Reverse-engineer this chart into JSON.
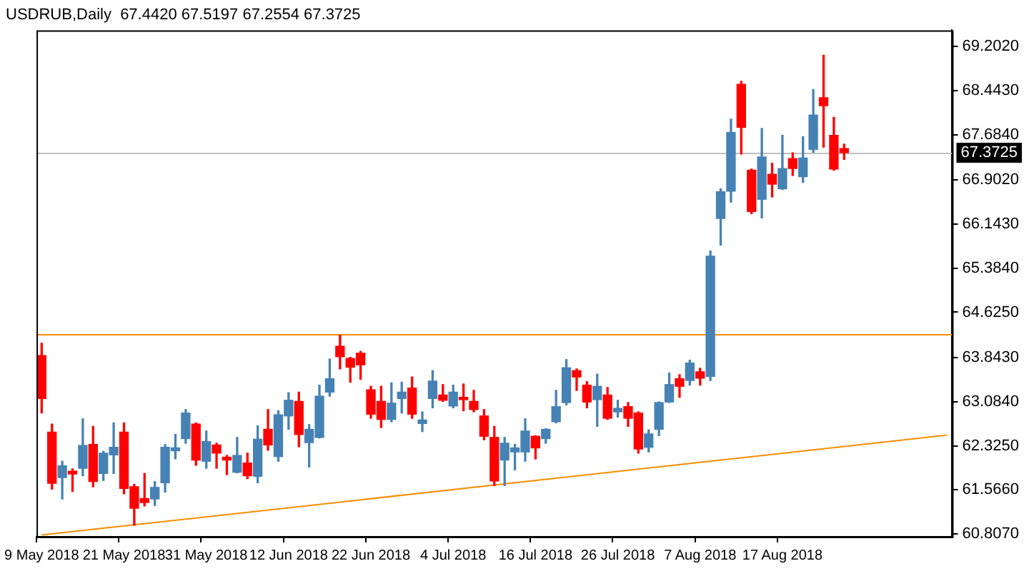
{
  "chart_data": {
    "type": "candlestick",
    "title": "USDRUB,Daily  67.4420 67.5197 67.2554 67.3725",
    "categories": [
      "9 May 2018",
      null,
      null,
      null,
      null,
      null,
      null,
      null,
      "21 May 2018",
      null,
      null,
      null,
      null,
      null,
      null,
      null,
      "31 May 2018",
      null,
      null,
      null,
      null,
      null,
      null,
      null,
      "12 Jun 2018",
      null,
      null,
      null,
      null,
      null,
      null,
      null,
      "22 Jun 2018",
      null,
      null,
      null,
      null,
      null,
      null,
      null,
      "4 Jul 2018",
      null,
      null,
      null,
      null,
      null,
      null,
      null,
      "16 Jul 2018",
      null,
      null,
      null,
      null,
      null,
      null,
      null,
      "26 Jul 2018",
      null,
      null,
      null,
      null,
      null,
      null,
      null,
      "7 Aug 2018",
      null,
      null,
      null,
      null,
      null,
      null,
      null,
      "17 Aug 2018",
      null,
      null,
      null,
      null,
      null,
      null,
      null,
      null,
      null,
      null,
      null,
      null,
      null,
      null,
      null,
      null
    ],
    "ohlc": [
      [
        63.88,
        64.09,
        62.89,
        63.14
      ],
      [
        62.56,
        62.7,
        61.58,
        61.68
      ],
      [
        61.78,
        62.06,
        61.41,
        61.98
      ],
      [
        61.89,
        61.93,
        61.54,
        61.84
      ],
      [
        61.94,
        62.79,
        61.81,
        62.33
      ],
      [
        62.35,
        62.66,
        61.62,
        61.71
      ],
      [
        61.85,
        62.23,
        61.73,
        62.2
      ],
      [
        62.17,
        62.72,
        61.85,
        62.3
      ],
      [
        62.56,
        62.72,
        61.5,
        61.59
      ],
      [
        61.62,
        61.66,
        60.96,
        61.25
      ],
      [
        61.42,
        61.85,
        61.29,
        61.35
      ],
      [
        61.41,
        61.71,
        61.3,
        61.61
      ],
      [
        61.69,
        62.35,
        61.53,
        62.3
      ],
      [
        62.24,
        62.52,
        62.1,
        62.29
      ],
      [
        62.45,
        62.95,
        62.37,
        62.89
      ],
      [
        62.7,
        62.72,
        61.99,
        62.08
      ],
      [
        62.06,
        62.58,
        61.94,
        62.4
      ],
      [
        62.34,
        62.37,
        61.94,
        62.2
      ],
      [
        62.13,
        62.16,
        61.83,
        62.08
      ],
      [
        61.87,
        62.47,
        61.86,
        62.16
      ],
      [
        62.03,
        62.2,
        61.76,
        61.81
      ],
      [
        61.8,
        62.67,
        61.69,
        62.44
      ],
      [
        62.61,
        62.95,
        62.25,
        62.34
      ],
      [
        62.14,
        62.93,
        62.06,
        62.86
      ],
      [
        62.84,
        63.24,
        62.61,
        63.11
      ],
      [
        63.09,
        63.25,
        62.31,
        62.52
      ],
      [
        62.38,
        62.69,
        61.96,
        62.61
      ],
      [
        62.47,
        63.37,
        62.46,
        63.18
      ],
      [
        63.25,
        63.82,
        63.18,
        63.48
      ],
      [
        64.04,
        64.23,
        63.65,
        63.86
      ],
      [
        63.83,
        63.85,
        63.42,
        63.68
      ],
      [
        63.92,
        63.95,
        63.47,
        63.72
      ],
      [
        63.29,
        63.35,
        62.8,
        62.87
      ],
      [
        63.09,
        63.35,
        62.64,
        62.78
      ],
      [
        62.78,
        63.41,
        62.74,
        63.06
      ],
      [
        63.14,
        63.42,
        62.89,
        63.25
      ],
      [
        63.32,
        63.51,
        62.8,
        62.87
      ],
      [
        62.71,
        62.91,
        62.57,
        62.77
      ],
      [
        63.14,
        63.62,
        62.98,
        63.44
      ],
      [
        63.2,
        63.38,
        63.09,
        63.11
      ],
      [
        63.01,
        63.37,
        62.98,
        63.25
      ],
      [
        63.16,
        63.39,
        62.93,
        63.12
      ],
      [
        63.09,
        63.28,
        62.91,
        62.95
      ],
      [
        62.84,
        62.95,
        62.43,
        62.49
      ],
      [
        62.47,
        62.66,
        61.64,
        61.72
      ],
      [
        62.08,
        62.47,
        61.64,
        62.37
      ],
      [
        62.22,
        62.35,
        61.91,
        62.29
      ],
      [
        62.22,
        62.79,
        62.06,
        62.58
      ],
      [
        62.49,
        62.5,
        62.1,
        62.29
      ],
      [
        62.45,
        62.62,
        62.37,
        62.61
      ],
      [
        62.74,
        63.28,
        62.72,
        63.0
      ],
      [
        63.07,
        63.81,
        63.03,
        63.67
      ],
      [
        63.62,
        63.65,
        63.28,
        63.51
      ],
      [
        63.37,
        63.43,
        62.98,
        63.08
      ],
      [
        63.12,
        63.56,
        62.66,
        63.35
      ],
      [
        63.2,
        63.33,
        62.78,
        62.8
      ],
      [
        62.91,
        63.11,
        62.82,
        62.97
      ],
      [
        63.0,
        63.07,
        62.66,
        62.8
      ],
      [
        62.89,
        62.91,
        62.2,
        62.27
      ],
      [
        62.3,
        62.6,
        62.22,
        62.53
      ],
      [
        62.61,
        63.08,
        62.5,
        63.07
      ],
      [
        63.08,
        63.58,
        63.07,
        63.38
      ],
      [
        63.48,
        63.55,
        63.16,
        63.35
      ],
      [
        63.45,
        63.8,
        63.37,
        63.75
      ],
      [
        63.6,
        63.66,
        63.37,
        63.49
      ],
      [
        63.52,
        65.68,
        63.45,
        65.59
      ],
      [
        66.24,
        66.75,
        65.78,
        66.7
      ],
      [
        66.71,
        67.95,
        66.52,
        67.72
      ],
      [
        68.55,
        68.6,
        67.35,
        67.81
      ],
      [
        67.07,
        67.09,
        66.32,
        66.36
      ],
      [
        66.57,
        67.79,
        66.25,
        67.3
      ],
      [
        67.0,
        67.19,
        66.61,
        66.83
      ],
      [
        66.75,
        67.67,
        66.74,
        67.1
      ],
      [
        67.27,
        67.37,
        66.98,
        67.1
      ],
      [
        66.96,
        67.65,
        66.86,
        67.28
      ],
      [
        67.43,
        68.46,
        67.38,
        68.02
      ],
      [
        68.32,
        69.05,
        67.47,
        68.18
      ],
      [
        67.67,
        67.98,
        67.07,
        67.09
      ],
      [
        67.442,
        67.5197,
        67.2554,
        67.3725
      ],
      null,
      null,
      null,
      null,
      null,
      null,
      null,
      null,
      null,
      null
    ],
    "colors": [
      "#ff0000",
      "#ff0000",
      "#4682b4",
      "#ff0000",
      "#4682b4",
      "#ff0000",
      "#4682b4",
      "#4682b4",
      "#ff0000",
      "#ff0000",
      "#ff0000",
      "#4682b4",
      "#4682b4",
      "#4682b4",
      "#4682b4",
      "#ff0000",
      "#4682b4",
      "#ff0000",
      "#ff0000",
      "#4682b4",
      "#ff0000",
      "#4682b4",
      "#ff0000",
      "#4682b4",
      "#4682b4",
      "#ff0000",
      "#4682b4",
      "#4682b4",
      "#4682b4",
      "#ff0000",
      "#ff0000",
      "#ff0000",
      "#ff0000",
      "#ff0000",
      "#4682b4",
      "#4682b4",
      "#ff0000",
      "#4682b4",
      "#4682b4",
      "#ff0000",
      "#4682b4",
      "#ff0000",
      "#ff0000",
      "#ff0000",
      "#ff0000",
      "#4682b4",
      "#4682b4",
      "#4682b4",
      "#ff0000",
      "#4682b4",
      "#4682b4",
      "#4682b4",
      "#ff0000",
      "#ff0000",
      "#4682b4",
      "#ff0000",
      "#4682b4",
      "#ff0000",
      "#ff0000",
      "#4682b4",
      "#4682b4",
      "#4682b4",
      "#ff0000",
      "#4682b4",
      "#ff0000",
      "#4682b4",
      "#4682b4",
      "#4682b4",
      "#ff0000",
      "#ff0000",
      "#4682b4",
      "#ff0000",
      "#4682b4",
      "#ff0000",
      "#4682b4",
      "#4682b4",
      "#ff0000",
      "#ff0000",
      "#ff0000",
      null,
      null,
      null,
      null,
      null,
      null,
      null,
      null,
      null,
      null
    ],
    "series": [
      {
        "type": "line",
        "color": "#ff8c00",
        "values": [
          60.79,
          null,
          null,
          null,
          null,
          null,
          null,
          null,
          null,
          null,
          null,
          null,
          null,
          null,
          null,
          null,
          null,
          null,
          null,
          null,
          null,
          null,
          null,
          null,
          null,
          null,
          null,
          null,
          null,
          null,
          null,
          null,
          null,
          null,
          null,
          null,
          null,
          null,
          null,
          null,
          null,
          null,
          null,
          null,
          null,
          null,
          null,
          null,
          null,
          null,
          null,
          null,
          null,
          null,
          null,
          null,
          null,
          null,
          null,
          null,
          null,
          null,
          null,
          null,
          null,
          null,
          null,
          null,
          null,
          null,
          null,
          null,
          null,
          null,
          null,
          null,
          null,
          null,
          null,
          null,
          null,
          null,
          null,
          null,
          null,
          null,
          null,
          null,
          62.51
        ]
      }
    ],
    "ylim": [
      60.76,
      69.48
    ],
    "yticks": [
      {
        "value": 60.807,
        "label": "60.8070"
      },
      {
        "value": 61.566,
        "label": "61.5660"
      },
      {
        "value": 62.325,
        "label": "62.3250"
      },
      {
        "value": 63.084,
        "label": "63.0840"
      },
      {
        "value": 63.843,
        "label": "63.8430"
      },
      {
        "value": 64.625,
        "label": "64.6250"
      },
      {
        "value": 65.384,
        "label": "65.3840"
      },
      {
        "value": 66.143,
        "label": "66.1430"
      },
      {
        "value": 66.902,
        "label": "66.9020"
      },
      {
        "value": 67.684,
        "label": "67.6840"
      },
      {
        "value": 68.443,
        "label": "68.4430"
      },
      {
        "value": 69.202,
        "label": "69.2020"
      }
    ],
    "ref_lines": [
      {
        "axis": "y",
        "value": 64.24,
        "color": "#ff8c00"
      },
      {
        "axis": "y",
        "value": 67.3725,
        "label": "67.3725",
        "color": "#c0c0c0"
      }
    ],
    "marker": "none",
    "line_style": "solid",
    "grid": false,
    "legend": false
  }
}
